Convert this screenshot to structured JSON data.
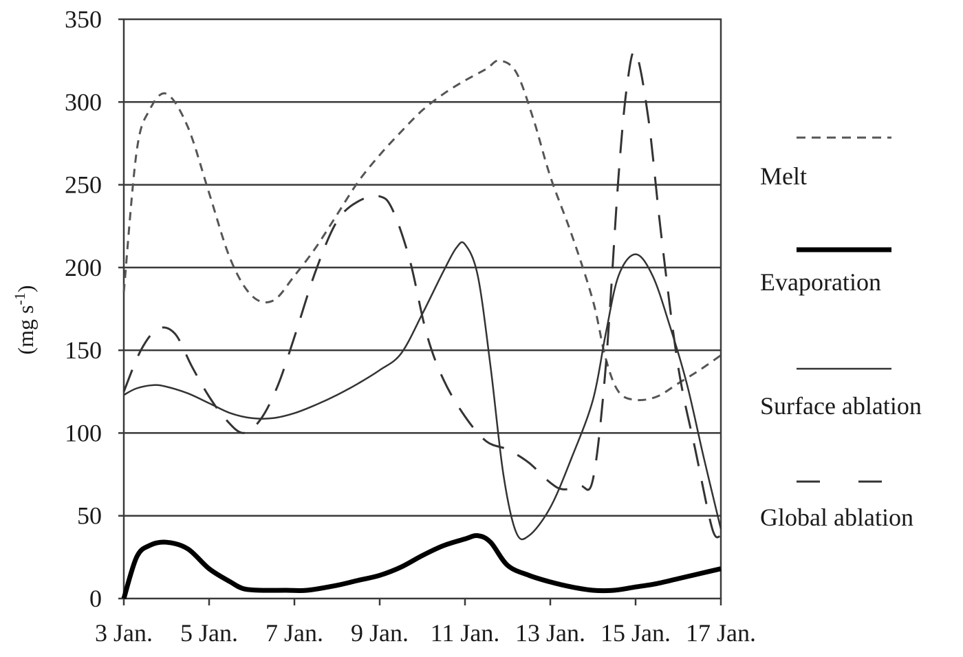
{
  "chart_data": {
    "type": "line",
    "ylabel": "(mg s",
    "ylabel_sup": "-1",
    "ylabel_end": ")",
    "xlabel": "",
    "ylim": [
      0,
      350
    ],
    "xlim": [
      3,
      17
    ],
    "grid": true,
    "legend_position": "right",
    "yticks": [
      0,
      50,
      100,
      150,
      200,
      250,
      300,
      350
    ],
    "xticks": [
      {
        "value": 3,
        "label": "3 Jan."
      },
      {
        "value": 5,
        "label": "5 Jan."
      },
      {
        "value": 7,
        "label": "7 Jan."
      },
      {
        "value": 9,
        "label": "9 Jan."
      },
      {
        "value": 11,
        "label": "11 Jan."
      },
      {
        "value": 13,
        "label": "13 Jan."
      },
      {
        "value": 15,
        "label": "15 Jan."
      },
      {
        "value": 17,
        "label": "17 Jan."
      }
    ],
    "series": [
      {
        "name": "Melt",
        "style": "short-dash",
        "x": [
          3.0,
          3.3,
          3.6,
          4.0,
          4.5,
          5.0,
          5.5,
          6.0,
          6.5,
          7.0,
          7.5,
          8.0,
          8.5,
          9.0,
          9.5,
          10.0,
          10.5,
          11.0,
          11.5,
          11.8,
          12.2,
          12.6,
          13.0,
          13.5,
          14.0,
          14.3,
          14.6,
          15.0,
          15.5,
          16.0,
          16.5,
          17.0
        ],
        "y": [
          185,
          270,
          295,
          305,
          285,
          245,
          205,
          183,
          180,
          195,
          212,
          232,
          252,
          268,
          282,
          295,
          305,
          313,
          320,
          325,
          318,
          290,
          255,
          220,
          180,
          145,
          125,
          120,
          122,
          130,
          138,
          147
        ]
      },
      {
        "name": "Evaporation",
        "style": "thick-solid",
        "x": [
          3.0,
          3.3,
          3.6,
          4.0,
          4.5,
          5.0,
          5.5,
          5.8,
          6.2,
          6.8,
          7.3,
          8.0,
          8.5,
          9.0,
          9.5,
          10.0,
          10.5,
          11.0,
          11.3,
          11.6,
          12.0,
          12.5,
          13.0,
          13.5,
          14.0,
          14.5,
          15.0,
          15.5,
          16.0,
          16.5,
          17.0
        ],
        "y": [
          0,
          25,
          32,
          34,
          30,
          18,
          10,
          6,
          5,
          5,
          5,
          8,
          11,
          14,
          19,
          26,
          32,
          36,
          38,
          34,
          20,
          14,
          10,
          7,
          5,
          5,
          7,
          9,
          12,
          15,
          18
        ]
      },
      {
        "name": "Surface ablation",
        "style": "thin-solid",
        "x": [
          3.0,
          3.3,
          3.7,
          4.0,
          4.5,
          5.0,
          5.5,
          6.0,
          6.5,
          7.0,
          7.5,
          8.0,
          8.5,
          9.0,
          9.5,
          10.0,
          10.5,
          10.8,
          11.0,
          11.3,
          11.6,
          11.9,
          12.2,
          12.5,
          13.0,
          13.5,
          14.0,
          14.3,
          14.6,
          15.0,
          15.4,
          15.8,
          16.2,
          16.6,
          17.0
        ],
        "y": [
          123,
          127,
          129,
          128,
          124,
          118,
          112,
          109,
          109,
          112,
          117,
          123,
          130,
          138,
          148,
          172,
          198,
          212,
          214,
          195,
          140,
          75,
          40,
          38,
          55,
          85,
          120,
          160,
          195,
          208,
          195,
          165,
          130,
          85,
          42
        ]
      },
      {
        "name": "Global ablation",
        "style": "long-dash",
        "x": [
          3.0,
          3.4,
          3.8,
          4.2,
          4.6,
          5.0,
          5.4,
          5.8,
          6.2,
          6.6,
          7.0,
          7.5,
          8.0,
          8.5,
          9.0,
          9.3,
          9.7,
          10.1,
          10.5,
          11.0,
          11.5,
          12.0,
          12.5,
          13.0,
          13.3,
          13.7,
          14.0,
          14.3,
          14.6,
          14.8,
          15.0,
          15.3,
          15.6,
          16.0,
          16.4,
          16.8,
          17.0
        ],
        "y": [
          125,
          150,
          163,
          160,
          140,
          122,
          108,
          100,
          108,
          128,
          158,
          198,
          228,
          240,
          243,
          235,
          205,
          160,
          132,
          110,
          95,
          90,
          82,
          70,
          66,
          68,
          72,
          140,
          255,
          310,
          330,
          290,
          220,
          140,
          90,
          42,
          38
        ]
      }
    ]
  }
}
